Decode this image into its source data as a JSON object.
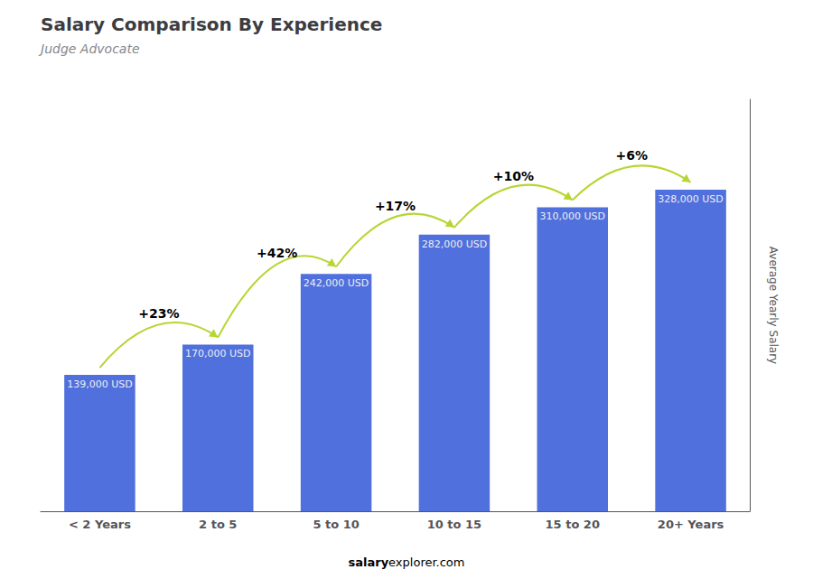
{
  "chart_data": {
    "type": "bar",
    "title": "Salary Comparison By Experience",
    "subtitle": "Judge Advocate",
    "ylabel": "Average Yearly Salary",
    "categories": [
      "< 2 Years",
      "2 to 5",
      "5 to 10",
      "10 to 15",
      "15 to 20",
      "20+ Years"
    ],
    "values": [
      139000,
      170000,
      242000,
      282000,
      310000,
      328000
    ],
    "value_labels": [
      "139,000 USD",
      "170,000 USD",
      "242,000 USD",
      "282,000 USD",
      "310,000 USD",
      "328,000 USD"
    ],
    "data_labels": true,
    "annotations": [
      "+23%",
      "+42%",
      "+17%",
      "+10%",
      "+6%"
    ],
    "watermark": [
      "salary",
      "explorer.com"
    ],
    "ylim": [
      0,
      420000
    ],
    "tick_labels": "x",
    "grid": false
  }
}
